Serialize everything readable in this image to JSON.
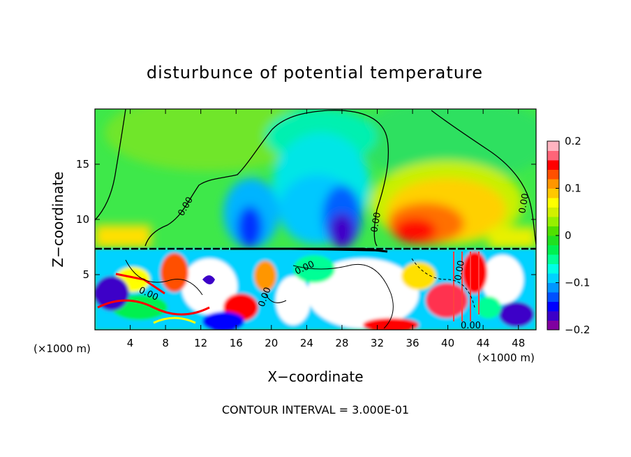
{
  "chart_data": {
    "type": "heatmap",
    "title": "disturbunce of potential temperature",
    "xlabel": "X−coordinate",
    "ylabel": "Z−coordinate",
    "x_unit_left": "(×1000 m)",
    "x_unit_right": "(×1000 m)",
    "xlim": [
      0,
      50
    ],
    "ylim": [
      0,
      20
    ],
    "x_ticks": [
      4,
      8,
      12,
      16,
      20,
      24,
      28,
      32,
      36,
      40,
      44,
      48
    ],
    "y_ticks": [
      5,
      10,
      15
    ],
    "colorbar": {
      "ticks": [
        0.2,
        0.1,
        0,
        -0.1,
        -0.2
      ],
      "tick_labels": [
        "0.2",
        "0.1",
        "0",
        "−0.1",
        "−0.2"
      ],
      "range": [
        -0.2,
        0.2
      ],
      "colors": [
        "#8000a0",
        "#3c00c8",
        "#0000ff",
        "#0050ff",
        "#0096ff",
        "#00d2ff",
        "#00ffe6",
        "#00ff96",
        "#00f050",
        "#20e020",
        "#50e000",
        "#96f000",
        "#d2f000",
        "#ffff00",
        "#ffc800",
        "#ff9600",
        "#ff5000",
        "#ff0000",
        "#ff6478",
        "#ffb4c0"
      ]
    },
    "contour_labels": [
      "0.00",
      "0.00",
      "0.00",
      "0.00",
      "0.00",
      "0.00",
      "0.00",
      "0.00"
    ],
    "contour_interval_text": "CONTOUR INTERVAL = 3.000E-01"
  }
}
